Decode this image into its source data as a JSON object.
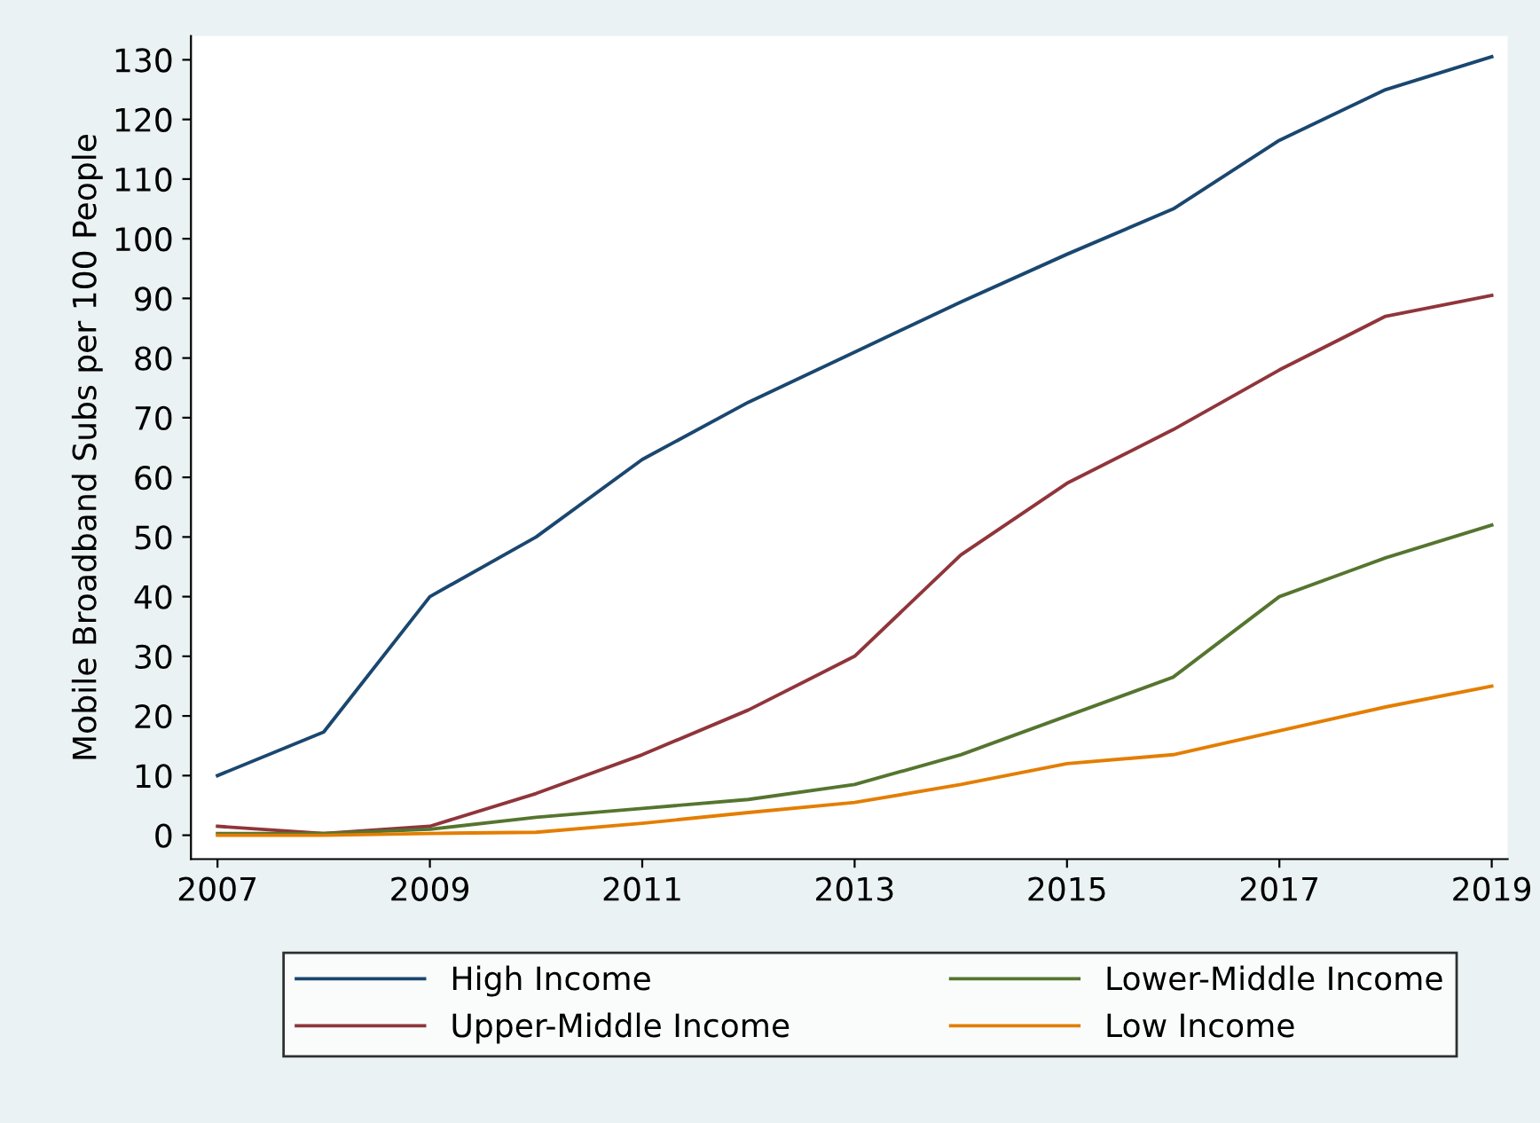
{
  "chart_data": {
    "type": "line",
    "ylabel": "Mobile Broadband Subs per 100 People",
    "x": [
      2007,
      2008,
      2009,
      2010,
      2011,
      2012,
      2013,
      2014,
      2015,
      2016,
      2017,
      2018,
      2019
    ],
    "series": [
      {
        "name": "High Income",
        "color": "#1a476f",
        "values": [
          10,
          17.3,
          40,
          50,
          63,
          72.6,
          81,
          89.4,
          97.4,
          105,
          116.5,
          125,
          130.5
        ]
      },
      {
        "name": "Upper-Middle Income",
        "color": "#90353b",
        "values": [
          1.5,
          0.3,
          1.5,
          7,
          13.5,
          21,
          30,
          47,
          59,
          68,
          78,
          87,
          90.5
        ]
      },
      {
        "name": "Lower-Middle Income",
        "color": "#55752f",
        "values": [
          0.3,
          0.3,
          1,
          3,
          4.5,
          6,
          8.5,
          13.5,
          20,
          26.5,
          40,
          46.5,
          52
        ]
      },
      {
        "name": "Low Income",
        "color": "#e37e00",
        "values": [
          0,
          0,
          0.3,
          0.5,
          2,
          3.8,
          5.5,
          8.5,
          12,
          13.5,
          17.5,
          21.5,
          25
        ]
      }
    ],
    "xlim": [
      2006.75,
      2019.15
    ],
    "xticks": [
      2007,
      2009,
      2011,
      2013,
      2015,
      2017,
      2019
    ],
    "ylim": [
      -4,
      134
    ],
    "yticks": [
      0,
      10,
      20,
      30,
      40,
      50,
      60,
      70,
      80,
      90,
      100,
      110,
      120,
      130
    ],
    "grid": false,
    "legend": "bottom",
    "marker": "none",
    "line_style": "solid"
  }
}
